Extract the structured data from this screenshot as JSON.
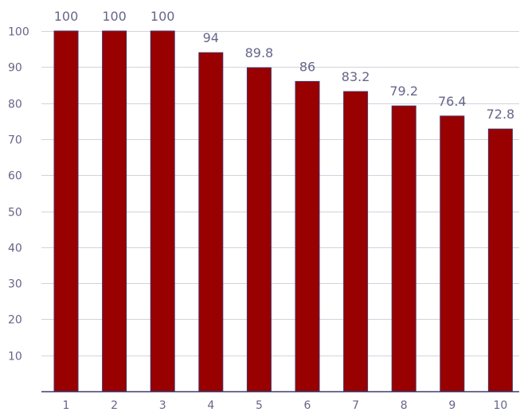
{
  "chart_data": {
    "type": "bar",
    "title": "",
    "xlabel": "",
    "ylabel": "",
    "categories": [
      "1",
      "2",
      "3",
      "4",
      "5",
      "6",
      "7",
      "8",
      "9",
      "10"
    ],
    "values": [
      100,
      100,
      100,
      94,
      89.8,
      86,
      83.2,
      79.2,
      76.4,
      72.8
    ],
    "data_labels": [
      "100",
      "100",
      "100",
      "94",
      "89.8",
      "86",
      "83.2",
      "79.2",
      "76.4",
      "72.8"
    ],
    "ylim": [
      0,
      100
    ],
    "yticks": [
      "10",
      "20",
      "30",
      "40",
      "50",
      "60",
      "70",
      "80",
      "90",
      "100"
    ],
    "grid": true,
    "legend": "none",
    "colors": {
      "bar": "#990000",
      "bar_outline": "#4a3060",
      "grid": "#d2d2dc",
      "axis": "#3c3c6e",
      "text": "#66668a"
    }
  }
}
